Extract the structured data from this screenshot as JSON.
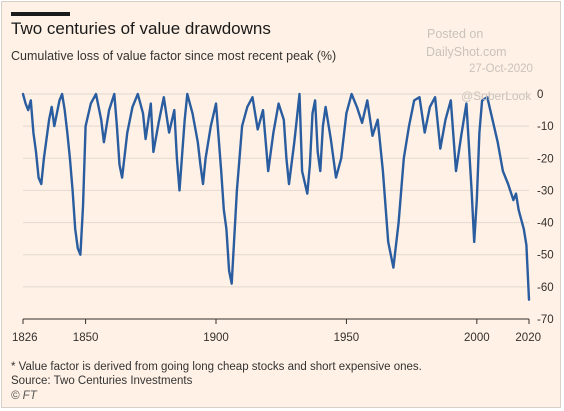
{
  "header": {
    "title": "Two centuries of value drawdowns",
    "subtitle": "Cumulative loss of value factor since most recent peak (%)"
  },
  "watermark": {
    "line1": "Posted on",
    "line2": "DailyShot.com",
    "date": "27-Oct-2020",
    "handle": "@SoberLook"
  },
  "footer": {
    "note": "* Value factor is derived from going long cheap stocks and short expensive ones.",
    "source": "Source: Two Centuries Investments",
    "credit": "© FT"
  },
  "colors": {
    "background": "#fff1e5",
    "line": "#2a5da0",
    "grid": "#e2d9d0",
    "axis": "#33302e"
  },
  "chart_data": {
    "type": "line",
    "title": "Two centuries of value drawdowns",
    "xlabel": "",
    "ylabel": "",
    "xlim": [
      1826,
      2020
    ],
    "ylim": [
      -70,
      0
    ],
    "x_ticks": [
      1826,
      1850,
      1900,
      1950,
      2000,
      2020
    ],
    "y_ticks": [
      0,
      -10,
      -20,
      -30,
      -40,
      -50,
      -60,
      -70
    ],
    "grid": true,
    "series": [
      {
        "name": "",
        "x": [
          1826,
          1827,
          1828,
          1829,
          1830,
          1831,
          1832,
          1833,
          1834,
          1835,
          1836,
          1837,
          1838,
          1839,
          1840,
          1841,
          1842,
          1843,
          1844,
          1845,
          1846,
          1847,
          1848,
          1849,
          1850,
          1852,
          1854,
          1856,
          1857,
          1859,
          1861,
          1862,
          1863,
          1864,
          1866,
          1868,
          1870,
          1872,
          1873,
          1875,
          1876,
          1878,
          1880,
          1882,
          1884,
          1885,
          1886,
          1888,
          1889,
          1891,
          1893,
          1894,
          1895,
          1896,
          1898,
          1900,
          1902,
          1903,
          1904,
          1905,
          1906,
          1908,
          1910,
          1912,
          1914,
          1916,
          1918,
          1920,
          1922,
          1924,
          1926,
          1927,
          1928,
          1930,
          1932,
          1933,
          1935,
          1936,
          1937,
          1938,
          1939,
          1940,
          1941,
          1942,
          1944,
          1946,
          1948,
          1950,
          1952,
          1954,
          1956,
          1958,
          1960,
          1962,
          1964,
          1966,
          1968,
          1970,
          1972,
          1974,
          1976,
          1978,
          1980,
          1982,
          1984,
          1986,
          1988,
          1990,
          1992,
          1994,
          1996,
          1998,
          1999,
          2000,
          2001,
          2002,
          2004,
          2006,
          2008,
          2010,
          2012,
          2014,
          2015,
          2016,
          2017,
          2018,
          2019,
          2020
        ],
        "values": [
          0,
          -3,
          -5,
          -2,
          -12,
          -18,
          -26,
          -28,
          -20,
          -14,
          -8,
          -4,
          -10,
          -6,
          -2,
          0,
          -5,
          -12,
          -20,
          -30,
          -42,
          -48,
          -50,
          -35,
          -10,
          -3,
          0,
          -8,
          -15,
          -5,
          0,
          -10,
          -22,
          -26,
          -12,
          -4,
          0,
          -6,
          -14,
          -3,
          -18,
          -9,
          -1,
          -12,
          -5,
          -20,
          -30,
          -8,
          0,
          -6,
          -15,
          -22,
          -28,
          -20,
          -10,
          -3,
          -24,
          -36,
          -42,
          -55,
          -59,
          -30,
          -10,
          -4,
          -1,
          -11,
          -5,
          -24,
          -12,
          -3,
          -8,
          -20,
          -28,
          -15,
          0,
          -24,
          -31,
          -22,
          -6,
          -2,
          -18,
          -24,
          -10,
          -4,
          -14,
          -26,
          -20,
          -6,
          0,
          -4,
          -9,
          -2,
          -13,
          -8,
          -24,
          -46,
          -54,
          -40,
          -20,
          -10,
          -2,
          -1,
          -12,
          -4,
          -1,
          -17,
          -8,
          -2,
          -24,
          -13,
          -3,
          -30,
          -46,
          -33,
          -12,
          -2,
          -1,
          -8,
          -15,
          -24,
          -28,
          -33,
          -31,
          -36,
          -39,
          -42,
          -47,
          -64
        ]
      }
    ]
  }
}
